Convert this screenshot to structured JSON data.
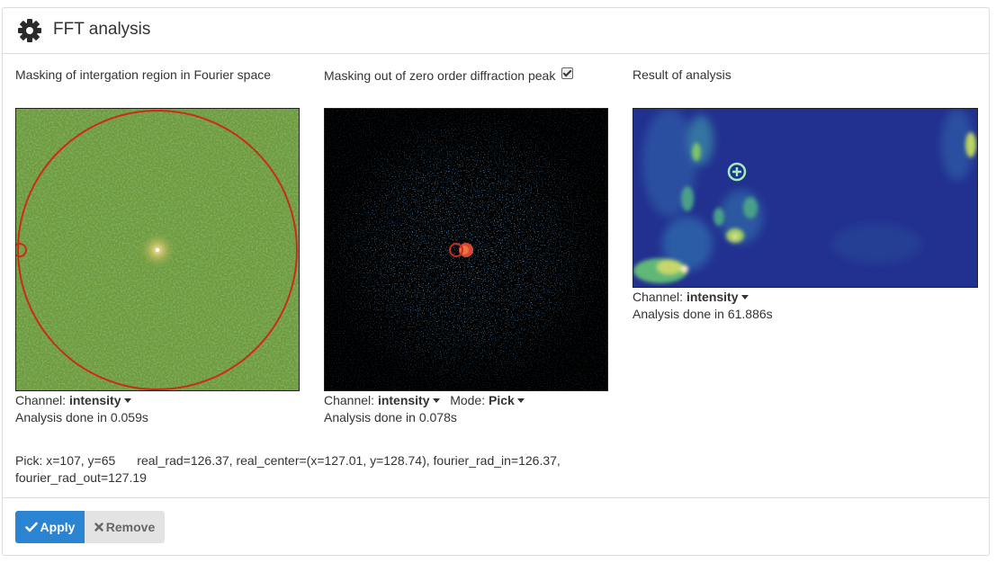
{
  "panel": {
    "title": "FFT analysis",
    "icon": "gear-icon"
  },
  "columns": {
    "left": {
      "label": "Masking of intergation region in Fourier space",
      "channel_prefix": "Channel:",
      "channel_value": "intensity",
      "status": "Analysis done in 0.059s"
    },
    "middle": {
      "label": "Masking out of zero order diffraction peak",
      "checkbox_checked": true,
      "channel_prefix": "Channel:",
      "channel_value": "intensity",
      "mode_prefix": "Mode:",
      "mode_value": "Pick",
      "status": "Analysis done in 0.078s"
    },
    "right": {
      "label": "Result of analysis",
      "channel_prefix": "Channel:",
      "channel_value": "intensity",
      "status": "Analysis done in 61.886s"
    }
  },
  "pick_info": {
    "pick": "Pick: x=107, y=65",
    "details": "real_rad=126.37, real_center=(x=127.01, y=128.74), fourier_rad_in=126.37, fourier_rad_out=127.19"
  },
  "buttons": {
    "apply": "Apply",
    "remove": "Remove"
  },
  "colors": {
    "accent": "#2a84d2",
    "mask_ring": "#cc2a1a",
    "fft_bg": "#6e9a3c",
    "result_bg": "#22308f"
  }
}
